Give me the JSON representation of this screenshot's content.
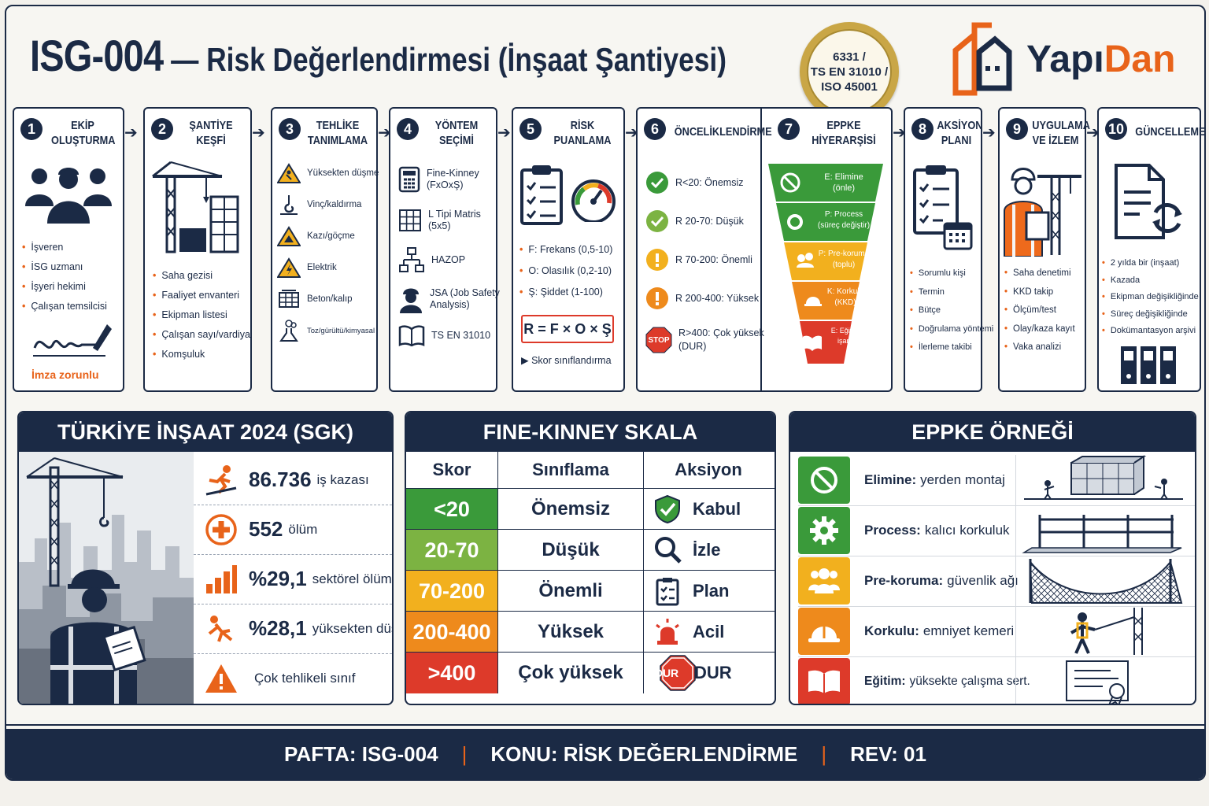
{
  "header": {
    "code": "ISG-004",
    "title": " — Risk Değerlendirmesi (İnşaat Şantiyesi)"
  },
  "seal": {
    "line1": "6331 /",
    "line2": "TS EN 31010 /",
    "line3": "ISO 45001"
  },
  "logo": {
    "part1": "Yapı",
    "part2": "Dan"
  },
  "colors": {
    "navy": "#1b2a45",
    "orange": "#e8631a",
    "green": "#3a9a3a",
    "lightgreen": "#7cb342",
    "yellow": "#f2b01e",
    "amber": "#ee8a1c",
    "red": "#dd3a2a"
  },
  "steps": [
    {
      "num": "1",
      "title1": "EKİP",
      "title2": "OLUŞTURMA",
      "items": [
        "İşveren",
        "İSG uzmanı",
        "İşyeri hekimi",
        "Çalışan temsilcisi"
      ],
      "note": "İmza zorunlu"
    },
    {
      "num": "2",
      "title1": "ŞANTİYE",
      "title2": "KEŞFİ",
      "items": [
        "Saha gezisi",
        "Faaliyet envanteri",
        "Ekipman listesi",
        "Çalışan sayı/vardiya",
        "Komşuluk"
      ]
    },
    {
      "num": "3",
      "title1": "TEHLİKE",
      "title2": "TANIMLAMA",
      "items": [
        "Yüksekten düşme",
        "Vinç/kaldırma",
        "Kazı/göçme",
        "Elektrik",
        "Beton/kalıp",
        "Toz/gürültü/kimyasal"
      ]
    },
    {
      "num": "4",
      "title1": "YÖNTEM",
      "title2": "SEÇİMİ",
      "items": [
        {
          "main": "Fine-Kinney",
          "sub": "(FxOxŞ)"
        },
        {
          "main": "L Tipi Matris",
          "sub": "(5x5)"
        },
        {
          "main": "HAZOP",
          "sub": ""
        },
        {
          "main": "JSA (Job Safety",
          "sub": "Analysis)"
        },
        {
          "main": "TS EN 31010",
          "sub": ""
        }
      ]
    },
    {
      "num": "5",
      "title1": "RİSK",
      "title2": "PUANLAMA",
      "items": [
        "F: Frekans (0,5-10)",
        "O: Olasılık (0,2-10)",
        "Ş: Şiddet (1-100)"
      ],
      "formula": "R = F × O × Ş",
      "note": "Skor sınıflandırma"
    },
    {
      "num": "6",
      "title1": "ÖNCELİKLENDİRME",
      "items": [
        {
          "label": "R<20: Önemsiz"
        },
        {
          "label": "R 20-70: Düşük"
        },
        {
          "label": "R 70-200: Önemli"
        },
        {
          "label": "R 200-400: Yüksek"
        },
        {
          "label": "R>400: Çok yüksek",
          "label2": "(DUR)",
          "badge": "STOP"
        }
      ]
    },
    {
      "num": "7",
      "title1": "EPPKE",
      "title2": "HİYERARŞİSİ",
      "levels": [
        {
          "l1": "E: Elimine",
          "l2": "(önle)"
        },
        {
          "l1": "P: Process",
          "l2": "(süreç değiştir)"
        },
        {
          "l1": "P: Pre-koruma",
          "l2": "(toplu)"
        },
        {
          "l1": "K: Korkulu",
          "l2": "(KKD)"
        },
        {
          "l1": "E: Eğitim/",
          "l2": "işaret"
        }
      ]
    },
    {
      "num": "8",
      "title1": "AKSİYON",
      "title2": "PLANI",
      "items": [
        "Sorumlu kişi",
        "Termin",
        "Bütçe",
        "Doğrulama yöntemi",
        "İlerleme takibi"
      ]
    },
    {
      "num": "9",
      "title1": "UYGULAMA",
      "title2": "VE İZLEM",
      "items": [
        "Saha denetimi",
        "KKD takip",
        "Ölçüm/test",
        "Olay/kaza kayıt",
        "Vaka analizi"
      ]
    },
    {
      "num": "10",
      "title1": "GÜNCELLEME",
      "items": [
        "2 yılda bir (inşaat)",
        "Kazada",
        "Ekipman değişikliğinde",
        "Süreç değişikliğinde",
        "Dokümantasyon arşivi"
      ]
    }
  ],
  "stats": {
    "title": "TÜRKİYE İNŞAAT 2024 (SGK)",
    "rows": [
      {
        "value": "86.736",
        "label": "iş kazası",
        "icon": "falling-worker-icon"
      },
      {
        "value": "552",
        "label": "ölüm",
        "icon": "medical-cross-icon"
      },
      {
        "value": "%29,1",
        "label": "sektörel ölüm",
        "icon": "bar-chart-icon"
      },
      {
        "value": "%28,1",
        "label": "yüksekten düşme",
        "icon": "falling-person-icon"
      },
      {
        "value": "",
        "label": "Çok tehlikeli sınıf",
        "icon": "warning-icon"
      }
    ]
  },
  "fine_kinney": {
    "title": "FINE-KINNEY SKALA",
    "headers": [
      "Skor",
      "Sınıflama",
      "Aksiyon"
    ],
    "rows": [
      {
        "score": "<20",
        "cls": "Önemsiz",
        "act": "Kabul",
        "color": "#3a9a3a"
      },
      {
        "score": "20-70",
        "cls": "Düşük",
        "act": "İzle",
        "color": "#7cb342"
      },
      {
        "score": "70-200",
        "cls": "Önemli",
        "act": "Plan",
        "color": "#f2b01e"
      },
      {
        "score": "200-400",
        "cls": "Yüksek",
        "act": "Acil",
        "color": "#ee8a1c"
      },
      {
        "score": ">400",
        "cls": "Çok yüksek",
        "act": "DUR",
        "color": "#dd3a2a",
        "badge": "DUR"
      }
    ]
  },
  "eppke_example": {
    "title": "EPPKE ÖRNEĞİ",
    "rows": [
      {
        "key": "Elimine:",
        "text": "yerden montaj",
        "color": "#3a9a3a"
      },
      {
        "key": "Process:",
        "text": "kalıcı korkuluk",
        "color": "#3a9a3a"
      },
      {
        "key": "Pre-koruma:",
        "text": "güvenlik ağı",
        "color": "#f2b01e"
      },
      {
        "key": "Korkulu:",
        "text": "emniyet kemeri",
        "color": "#ee8a1c"
      },
      {
        "key": "Eğitim:",
        "text": "yüksekte çalışma sert.",
        "color": "#dd3a2a"
      }
    ]
  },
  "footer": {
    "item1": "PAFTA: ISG-004",
    "item2": "KONU: RİSK DEĞERLENDİRME",
    "item3": "REV: 01"
  }
}
